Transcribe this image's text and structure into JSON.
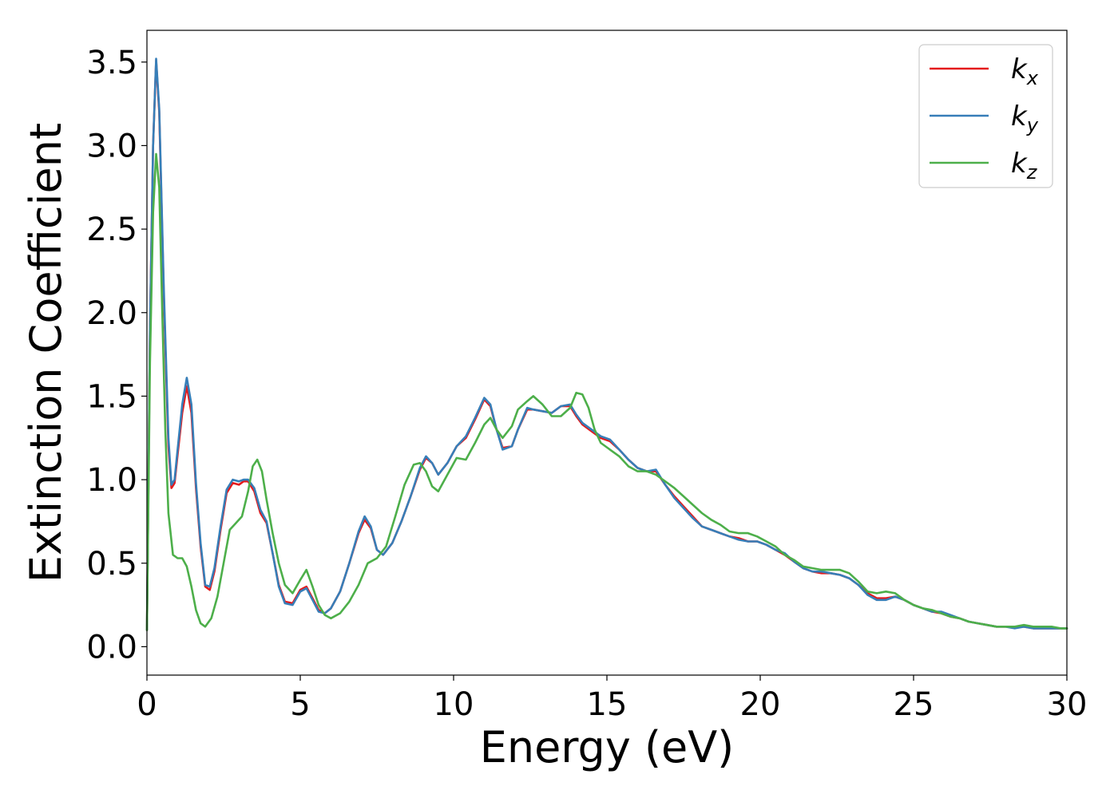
{
  "chart_data": {
    "type": "line",
    "xlabel": "Energy (eV)",
    "ylabel": "Extinction Coefficient",
    "xlim": [
      0,
      30
    ],
    "ylim": [
      -0.17,
      3.69
    ],
    "xticks": [
      0,
      5,
      10,
      15,
      20,
      25,
      30
    ],
    "xtick_labels": [
      "0",
      "5",
      "10",
      "15",
      "20",
      "25",
      "30"
    ],
    "yticks": [
      0.0,
      0.5,
      1.0,
      1.5,
      2.0,
      2.5,
      3.0,
      3.5
    ],
    "ytick_labels": [
      "0.0",
      "0.5",
      "1.0",
      "1.5",
      "2.0",
      "2.5",
      "3.0",
      "3.5"
    ],
    "grid": false,
    "legend_position": "top-right",
    "series": [
      {
        "name": "k",
        "subscript": "x",
        "color": "#e41a1c",
        "x": [
          0.0,
          0.1,
          0.2,
          0.3,
          0.4,
          0.55,
          0.7,
          0.8,
          0.9,
          1.0,
          1.15,
          1.3,
          1.45,
          1.6,
          1.75,
          1.9,
          2.05,
          2.2,
          2.4,
          2.6,
          2.8,
          3.0,
          3.15,
          3.3,
          3.5,
          3.7,
          3.9,
          4.1,
          4.3,
          4.5,
          4.75,
          5.0,
          5.2,
          5.4,
          5.6,
          5.8,
          6.0,
          6.3,
          6.6,
          6.9,
          7.1,
          7.3,
          7.5,
          7.7,
          8.0,
          8.3,
          8.6,
          8.9,
          9.1,
          9.3,
          9.5,
          9.8,
          10.1,
          10.4,
          10.7,
          11.0,
          11.2,
          11.4,
          11.6,
          11.9,
          12.1,
          12.4,
          12.6,
          12.9,
          13.2,
          13.5,
          13.8,
          14.0,
          14.2,
          14.5,
          14.8,
          15.1,
          15.4,
          15.7,
          16.0,
          16.3,
          16.6,
          16.9,
          17.2,
          17.5,
          17.8,
          18.1,
          18.4,
          18.7,
          19.0,
          19.3,
          19.6,
          19.9,
          20.2,
          20.5,
          20.8,
          21.1,
          21.4,
          21.7,
          22.0,
          22.3,
          22.6,
          22.9,
          23.2,
          23.5,
          23.8,
          24.1,
          24.4,
          24.7,
          25.0,
          25.3,
          25.6,
          25.9,
          26.2,
          26.5,
          26.8,
          27.1,
          27.4,
          27.7,
          28.0,
          28.3,
          28.6,
          28.9,
          29.2,
          29.5,
          29.8,
          30.0
        ],
        "y": [
          0.1,
          1.9,
          3.0,
          3.51,
          3.2,
          2.1,
          1.2,
          0.95,
          0.98,
          1.15,
          1.4,
          1.56,
          1.4,
          0.95,
          0.6,
          0.36,
          0.34,
          0.45,
          0.7,
          0.92,
          0.98,
          0.97,
          0.99,
          0.99,
          0.93,
          0.8,
          0.74,
          0.56,
          0.37,
          0.27,
          0.26,
          0.34,
          0.36,
          0.29,
          0.22,
          0.2,
          0.23,
          0.33,
          0.5,
          0.68,
          0.76,
          0.71,
          0.58,
          0.55,
          0.62,
          0.75,
          0.9,
          1.06,
          1.13,
          1.1,
          1.03,
          1.1,
          1.2,
          1.25,
          1.36,
          1.48,
          1.44,
          1.3,
          1.19,
          1.2,
          1.3,
          1.42,
          1.42,
          1.41,
          1.4,
          1.44,
          1.44,
          1.38,
          1.33,
          1.29,
          1.25,
          1.23,
          1.18,
          1.12,
          1.07,
          1.05,
          1.05,
          0.97,
          0.9,
          0.84,
          0.78,
          0.72,
          0.7,
          0.68,
          0.66,
          0.65,
          0.63,
          0.63,
          0.61,
          0.58,
          0.55,
          0.51,
          0.47,
          0.45,
          0.44,
          0.44,
          0.43,
          0.41,
          0.37,
          0.32,
          0.29,
          0.29,
          0.3,
          0.28,
          0.25,
          0.23,
          0.21,
          0.2,
          0.18,
          0.17,
          0.15,
          0.14,
          0.13,
          0.12,
          0.12,
          0.12,
          0.12,
          0.11,
          0.11,
          0.11,
          0.11,
          0.11
        ]
      },
      {
        "name": "k",
        "subscript": "y",
        "color": "#377eb8",
        "x": [
          0.0,
          0.1,
          0.2,
          0.3,
          0.4,
          0.55,
          0.7,
          0.8,
          0.9,
          1.0,
          1.15,
          1.3,
          1.45,
          1.6,
          1.75,
          1.9,
          2.05,
          2.2,
          2.4,
          2.6,
          2.8,
          3.0,
          3.15,
          3.3,
          3.5,
          3.7,
          3.9,
          4.1,
          4.3,
          4.5,
          4.75,
          5.0,
          5.2,
          5.4,
          5.6,
          5.8,
          6.0,
          6.3,
          6.6,
          6.9,
          7.1,
          7.3,
          7.5,
          7.7,
          8.0,
          8.3,
          8.6,
          8.9,
          9.1,
          9.3,
          9.5,
          9.8,
          10.1,
          10.4,
          10.7,
          11.0,
          11.2,
          11.4,
          11.6,
          11.9,
          12.1,
          12.4,
          12.6,
          12.9,
          13.2,
          13.5,
          13.8,
          14.0,
          14.2,
          14.5,
          14.8,
          15.1,
          15.4,
          15.7,
          16.0,
          16.3,
          16.6,
          16.9,
          17.2,
          17.5,
          17.8,
          18.1,
          18.4,
          18.7,
          19.0,
          19.3,
          19.6,
          19.9,
          20.2,
          20.5,
          20.8,
          21.1,
          21.4,
          21.7,
          22.0,
          22.3,
          22.6,
          22.9,
          23.2,
          23.5,
          23.8,
          24.1,
          24.4,
          24.7,
          25.0,
          25.3,
          25.6,
          25.9,
          26.2,
          26.5,
          26.8,
          27.1,
          27.4,
          27.7,
          28.0,
          28.3,
          28.6,
          28.9,
          29.2,
          29.5,
          29.8,
          30.0
        ],
        "y": [
          0.1,
          1.9,
          3.0,
          3.52,
          3.22,
          2.15,
          1.25,
          0.97,
          1.0,
          1.18,
          1.45,
          1.61,
          1.45,
          0.98,
          0.62,
          0.37,
          0.36,
          0.47,
          0.72,
          0.94,
          1.0,
          0.99,
          1.0,
          1.0,
          0.95,
          0.82,
          0.75,
          0.56,
          0.36,
          0.26,
          0.25,
          0.33,
          0.35,
          0.28,
          0.21,
          0.2,
          0.23,
          0.33,
          0.5,
          0.69,
          0.78,
          0.72,
          0.58,
          0.55,
          0.62,
          0.75,
          0.9,
          1.07,
          1.14,
          1.1,
          1.03,
          1.1,
          1.2,
          1.26,
          1.37,
          1.49,
          1.45,
          1.3,
          1.18,
          1.2,
          1.3,
          1.43,
          1.42,
          1.41,
          1.4,
          1.44,
          1.45,
          1.39,
          1.34,
          1.3,
          1.26,
          1.24,
          1.18,
          1.12,
          1.07,
          1.05,
          1.06,
          0.97,
          0.89,
          0.83,
          0.77,
          0.72,
          0.7,
          0.68,
          0.66,
          0.64,
          0.63,
          0.63,
          0.61,
          0.58,
          0.56,
          0.51,
          0.47,
          0.45,
          0.45,
          0.44,
          0.43,
          0.41,
          0.37,
          0.31,
          0.28,
          0.28,
          0.3,
          0.28,
          0.25,
          0.23,
          0.21,
          0.21,
          0.19,
          0.17,
          0.15,
          0.14,
          0.13,
          0.12,
          0.12,
          0.11,
          0.12,
          0.11,
          0.11,
          0.11,
          0.11,
          0.11
        ]
      },
      {
        "name": "k",
        "subscript": "z",
        "color": "#4daf4a",
        "x": [
          0.0,
          0.1,
          0.2,
          0.3,
          0.4,
          0.5,
          0.6,
          0.7,
          0.85,
          1.0,
          1.15,
          1.3,
          1.45,
          1.6,
          1.75,
          1.9,
          2.1,
          2.3,
          2.5,
          2.7,
          2.9,
          3.1,
          3.3,
          3.45,
          3.6,
          3.75,
          3.9,
          4.1,
          4.3,
          4.5,
          4.75,
          5.0,
          5.2,
          5.4,
          5.6,
          5.8,
          6.0,
          6.3,
          6.6,
          6.9,
          7.2,
          7.5,
          7.8,
          8.1,
          8.4,
          8.7,
          8.9,
          9.1,
          9.3,
          9.5,
          9.8,
          10.1,
          10.4,
          10.7,
          11.0,
          11.2,
          11.4,
          11.6,
          11.9,
          12.1,
          12.4,
          12.6,
          12.9,
          13.2,
          13.5,
          13.8,
          14.0,
          14.2,
          14.4,
          14.6,
          14.8,
          15.1,
          15.4,
          15.7,
          16.0,
          16.3,
          16.6,
          16.9,
          17.2,
          17.5,
          17.8,
          18.1,
          18.4,
          18.7,
          19.0,
          19.3,
          19.6,
          19.9,
          20.2,
          20.5,
          20.8,
          21.1,
          21.4,
          21.7,
          22.0,
          22.3,
          22.6,
          22.9,
          23.2,
          23.5,
          23.8,
          24.1,
          24.4,
          24.7,
          25.0,
          25.3,
          25.6,
          25.9,
          26.2,
          26.5,
          26.8,
          27.1,
          27.4,
          27.7,
          28.0,
          28.3,
          28.6,
          28.9,
          29.2,
          29.5,
          29.8,
          30.0
        ],
        "y": [
          0.1,
          1.7,
          2.6,
          2.95,
          2.75,
          2.0,
          1.3,
          0.8,
          0.55,
          0.53,
          0.53,
          0.48,
          0.36,
          0.22,
          0.14,
          0.12,
          0.17,
          0.3,
          0.5,
          0.7,
          0.74,
          0.78,
          0.93,
          1.08,
          1.12,
          1.05,
          0.88,
          0.68,
          0.5,
          0.37,
          0.32,
          0.4,
          0.46,
          0.36,
          0.25,
          0.19,
          0.17,
          0.2,
          0.27,
          0.37,
          0.5,
          0.53,
          0.6,
          0.78,
          0.97,
          1.09,
          1.1,
          1.05,
          0.96,
          0.93,
          1.03,
          1.13,
          1.12,
          1.22,
          1.33,
          1.37,
          1.3,
          1.25,
          1.32,
          1.42,
          1.47,
          1.5,
          1.45,
          1.38,
          1.38,
          1.43,
          1.52,
          1.51,
          1.43,
          1.3,
          1.22,
          1.18,
          1.14,
          1.08,
          1.05,
          1.05,
          1.03,
          0.99,
          0.95,
          0.9,
          0.85,
          0.8,
          0.76,
          0.73,
          0.69,
          0.68,
          0.68,
          0.66,
          0.63,
          0.6,
          0.55,
          0.52,
          0.48,
          0.47,
          0.46,
          0.46,
          0.46,
          0.44,
          0.39,
          0.33,
          0.32,
          0.33,
          0.32,
          0.28,
          0.25,
          0.23,
          0.22,
          0.2,
          0.18,
          0.17,
          0.15,
          0.14,
          0.13,
          0.12,
          0.12,
          0.12,
          0.13,
          0.12,
          0.12,
          0.12,
          0.11,
          0.11
        ]
      }
    ]
  }
}
